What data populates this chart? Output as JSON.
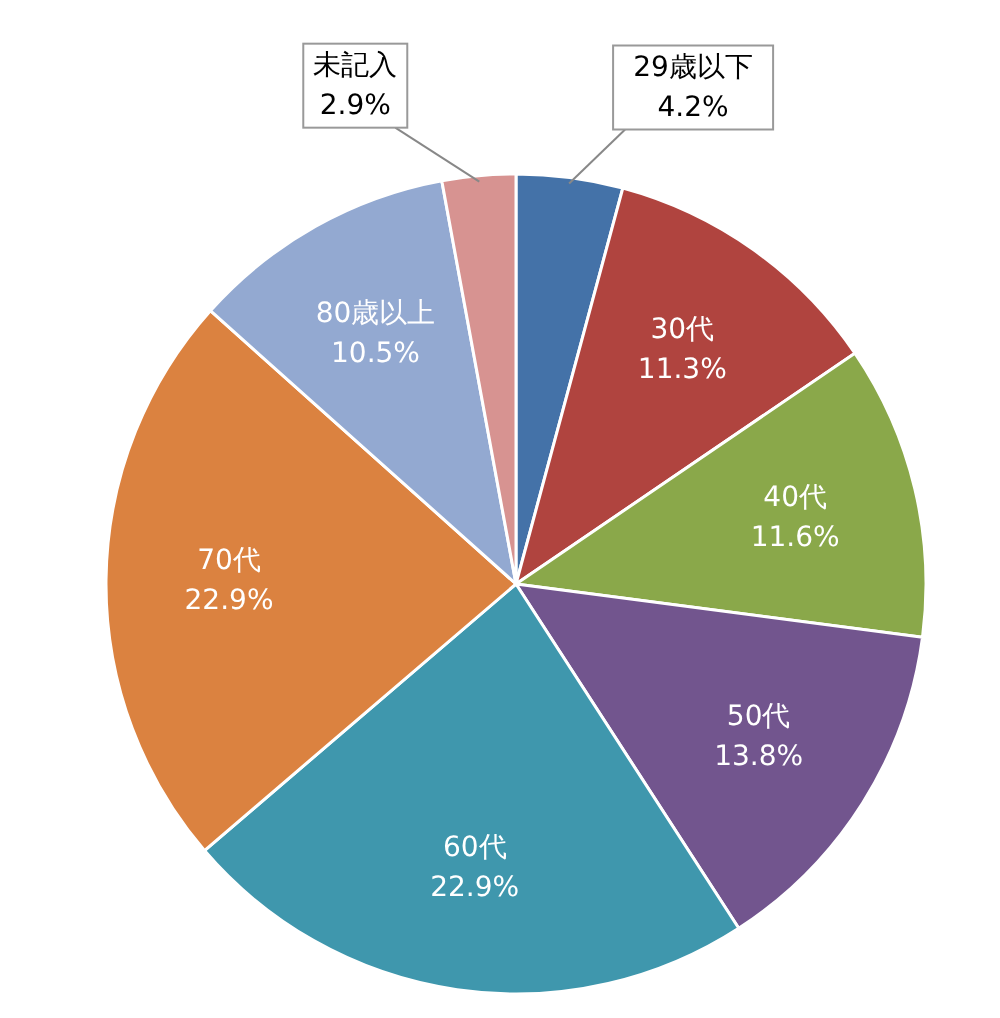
{
  "chart_data": {
    "type": "pie",
    "categories": [
      "29歳以下",
      "30代",
      "40代",
      "50代",
      "60代",
      "70代",
      "80歳以上",
      "未記入"
    ],
    "values": [
      4.2,
      11.3,
      11.6,
      13.8,
      22.9,
      22.9,
      10.5,
      2.9
    ],
    "colors": [
      "#4472a8",
      "#b0443f",
      "#8aa84a",
      "#72558e",
      "#3f97ad",
      "#db8240",
      "#93a9d1",
      "#d79391"
    ],
    "value_labels": [
      "4.2%",
      "11.3%",
      "11.6%",
      "13.8%",
      "22.9%",
      "22.9%",
      "10.5%",
      "2.9%"
    ]
  }
}
